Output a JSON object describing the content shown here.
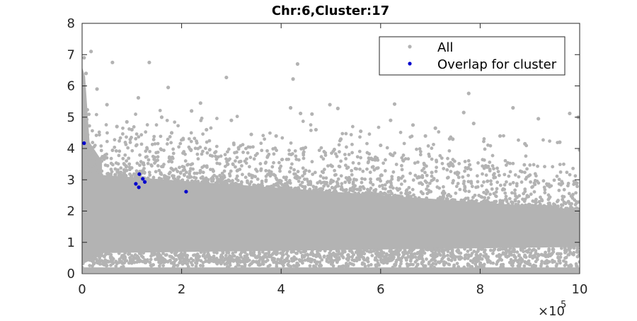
{
  "chart_data": {
    "type": "scatter",
    "title": "Chr:6,Cluster:17",
    "xlabel": "",
    "ylabel": "",
    "xlim": [
      0,
      1000000
    ],
    "ylim": [
      0,
      8
    ],
    "x_ticks": [
      0,
      200000,
      400000,
      600000,
      800000,
      1000000
    ],
    "x_tick_labels": [
      "0",
      "2",
      "4",
      "6",
      "8",
      "10"
    ],
    "y_ticks": [
      0,
      1,
      2,
      3,
      4,
      5,
      6,
      7,
      8
    ],
    "y_tick_labels": [
      "0",
      "1",
      "2",
      "3",
      "4",
      "5",
      "6",
      "7",
      "8"
    ],
    "x_exponent_label": {
      "base": "×10",
      "exponent": "5"
    },
    "grid": false,
    "legend_position": "top-right",
    "series": [
      {
        "name": "All",
        "color": "#b3b3b3",
        "description_values": "dense background cloud",
        "points": [
          [
            18000,
            7.1
          ],
          [
            61000,
            6.75
          ],
          [
            135000,
            6.75
          ],
          [
            433000,
            6.7
          ],
          [
            290000,
            6.27
          ],
          [
            424000,
            6.22
          ],
          [
            173000,
            5.95
          ],
          [
            113000,
            5.62
          ],
          [
            238000,
            5.45
          ],
          [
            777000,
            5.76
          ],
          [
            419000,
            5.3
          ],
          [
            514000,
            5.28
          ],
          [
            439000,
            5.12
          ],
          [
            462000,
            5.1
          ],
          [
            498000,
            5.4
          ],
          [
            628000,
            5.42
          ],
          [
            767000,
            5.15
          ],
          [
            866000,
            5.3
          ],
          [
            980000,
            5.12
          ],
          [
            997000,
            5.0
          ],
          [
            917000,
            4.95
          ],
          [
            665000,
            4.75
          ],
          [
            620000,
            4.9
          ],
          [
            787000,
            4.8
          ],
          [
            710000,
            4.65
          ],
          [
            300000,
            4.9
          ],
          [
            220000,
            5.2
          ],
          [
            160000,
            5.0
          ],
          [
            560000,
            4.55
          ],
          [
            340000,
            4.45
          ],
          [
            90000,
            4.85
          ],
          [
            50000,
            5.4
          ],
          [
            70000,
            4.7
          ],
          [
            960000,
            4.2
          ],
          [
            840000,
            4.4
          ],
          [
            890000,
            4.15
          ],
          [
            745000,
            4.3
          ],
          [
            690000,
            4.4
          ],
          [
            600000,
            4.1
          ],
          [
            520000,
            4.3
          ],
          [
            470000,
            4.6
          ],
          [
            390000,
            4.4
          ],
          [
            250000,
            4.6
          ],
          [
            180000,
            4.5
          ],
          [
            100000,
            4.6
          ],
          [
            30000,
            5.9
          ],
          [
            8000,
            6.4
          ],
          [
            4000,
            6.9
          ]
        ]
      },
      {
        "name": "Overlap for cluster",
        "color": "#0000cd",
        "points": [
          [
            4000,
            4.17
          ],
          [
            115000,
            3.18
          ],
          [
            122000,
            3.03
          ],
          [
            126000,
            2.93
          ],
          [
            108000,
            2.87
          ],
          [
            114000,
            2.76
          ],
          [
            209000,
            2.62
          ]
        ]
      }
    ],
    "legend": [
      {
        "label": "All",
        "color": "#b3b3b3"
      },
      {
        "label": "Overlap for cluster",
        "color": "#0000cd"
      }
    ]
  }
}
